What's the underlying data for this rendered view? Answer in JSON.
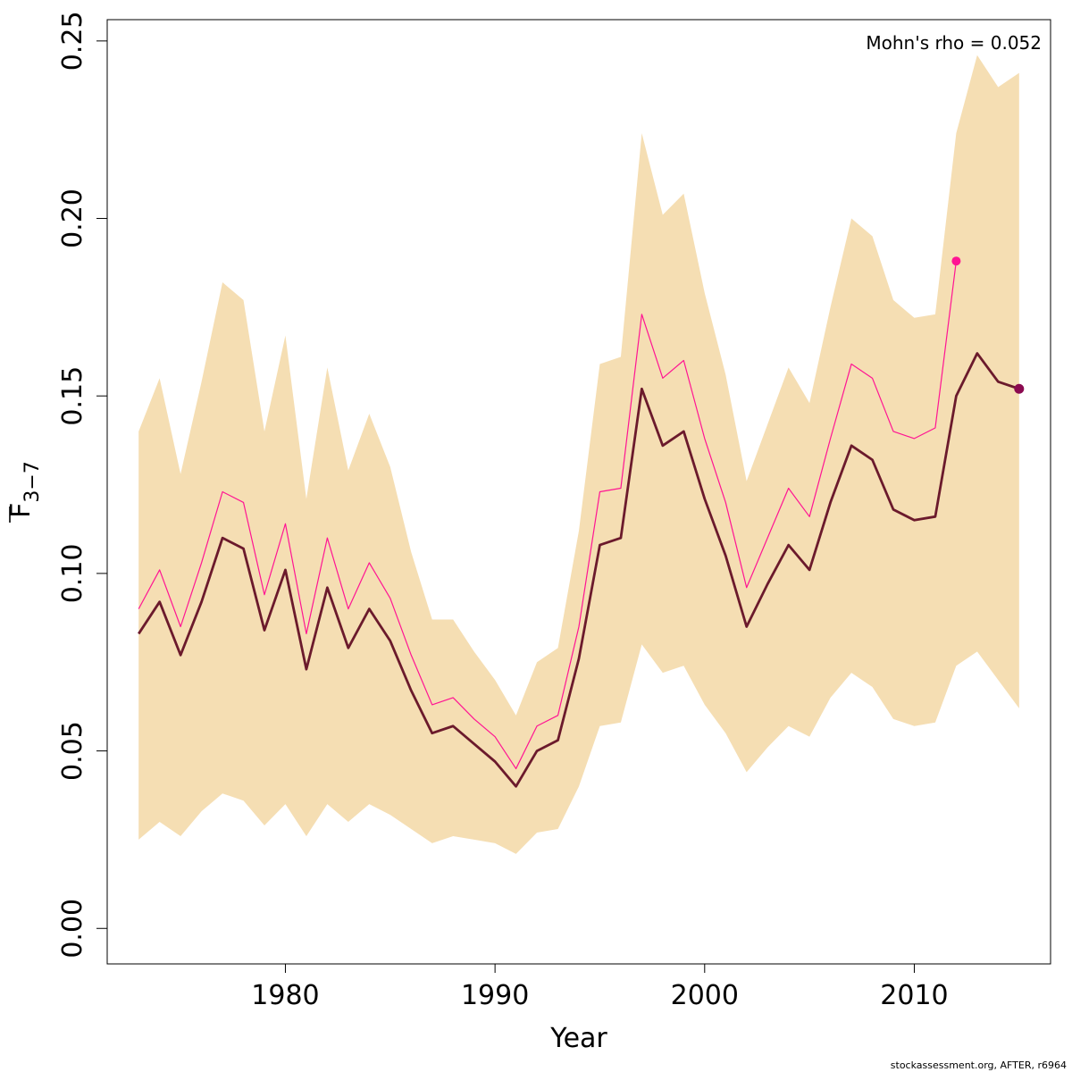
{
  "chart_data": {
    "type": "line",
    "xlabel": "Year",
    "ylabel_main": "F",
    "ylabel_sub": "3−7",
    "xlim": [
      1971.5,
      2016.5
    ],
    "ylim": [
      -0.01,
      0.256
    ],
    "x_ticks": [
      1980,
      1990,
      2000,
      2010
    ],
    "y_ticks": [
      "0.00",
      "0.05",
      "0.10",
      "0.15",
      "0.20",
      "0.25"
    ],
    "annotation": "Mohn's rho = 0.052",
    "footer": "stockassessment.org, AFTER, r6964",
    "colors": {
      "band": "#F5DEB3",
      "main_line": "#6B1A2C",
      "main_point": "#8B0A50",
      "retro_line": "#FF1493",
      "retro_point": "#FF1493"
    },
    "confidence_band": {
      "x": [
        1973,
        1974,
        1975,
        1976,
        1977,
        1978,
        1979,
        1980,
        1981,
        1982,
        1983,
        1984,
        1985,
        1986,
        1987,
        1988,
        1989,
        1990,
        1991,
        1992,
        1993,
        1994,
        1995,
        1996,
        1997,
        1998,
        1999,
        2000,
        2001,
        2002,
        2003,
        2004,
        2005,
        2006,
        2007,
        2008,
        2009,
        2010,
        2011,
        2012,
        2013,
        2014,
        2015
      ],
      "upper": [
        0.14,
        0.155,
        0.128,
        0.154,
        0.182,
        0.177,
        0.14,
        0.167,
        0.121,
        0.158,
        0.129,
        0.145,
        0.13,
        0.106,
        0.087,
        0.087,
        0.078,
        0.07,
        0.06,
        0.075,
        0.079,
        0.112,
        0.159,
        0.161,
        0.224,
        0.201,
        0.207,
        0.179,
        0.156,
        0.126,
        0.142,
        0.158,
        0.148,
        0.175,
        0.2,
        0.195,
        0.177,
        0.172,
        0.173,
        0.224,
        0.246,
        0.237,
        0.241
      ],
      "lower": [
        0.025,
        0.03,
        0.026,
        0.033,
        0.038,
        0.036,
        0.029,
        0.035,
        0.026,
        0.035,
        0.03,
        0.035,
        0.032,
        0.028,
        0.024,
        0.026,
        0.025,
        0.024,
        0.021,
        0.027,
        0.028,
        0.04,
        0.057,
        0.058,
        0.08,
        0.072,
        0.074,
        0.063,
        0.055,
        0.044,
        0.051,
        0.057,
        0.054,
        0.065,
        0.072,
        0.068,
        0.059,
        0.057,
        0.058,
        0.074,
        0.078,
        0.07,
        0.062
      ]
    },
    "series": [
      {
        "x": [
          1973,
          1974,
          1975,
          1976,
          1977,
          1978,
          1979,
          1980,
          1981,
          1982,
          1983,
          1984,
          1985,
          1986,
          1987,
          1988,
          1989,
          1990,
          1991,
          1992,
          1993,
          1994,
          1995,
          1996,
          1997,
          1998,
          1999,
          2000,
          2001,
          2002,
          2003,
          2004,
          2005,
          2006,
          2007,
          2008,
          2009,
          2010,
          2011,
          2012,
          2013,
          2014,
          2015
        ],
        "values": [
          0.083,
          0.092,
          0.077,
          0.092,
          0.11,
          0.107,
          0.084,
          0.101,
          0.073,
          0.096,
          0.079,
          0.09,
          0.081,
          0.067,
          0.055,
          0.057,
          0.052,
          0.047,
          0.04,
          0.05,
          0.053,
          0.076,
          0.108,
          0.11,
          0.152,
          0.136,
          0.14,
          0.121,
          0.105,
          0.085,
          0.097,
          0.108,
          0.101,
          0.12,
          0.136,
          0.132,
          0.118,
          0.115,
          0.116,
          0.15,
          0.162,
          0.154,
          0.152
        ],
        "end_point": [
          2015,
          0.152
        ]
      },
      {
        "x": [
          1973,
          1974,
          1975,
          1976,
          1977,
          1978,
          1979,
          1980,
          1981,
          1982,
          1983,
          1984,
          1985,
          1986,
          1987,
          1988,
          1989,
          1990,
          1991,
          1992,
          1993,
          1994,
          1995,
          1996,
          1997,
          1998,
          1999,
          2000,
          2001,
          2002,
          2003,
          2004,
          2005,
          2006,
          2007,
          2008,
          2009,
          2010,
          2011,
          2012
        ],
        "values": [
          0.09,
          0.101,
          0.085,
          0.103,
          0.123,
          0.12,
          0.094,
          0.114,
          0.083,
          0.11,
          0.09,
          0.103,
          0.093,
          0.077,
          0.063,
          0.065,
          0.059,
          0.054,
          0.045,
          0.057,
          0.06,
          0.085,
          0.123,
          0.124,
          0.173,
          0.155,
          0.16,
          0.138,
          0.12,
          0.096,
          0.11,
          0.124,
          0.116,
          0.138,
          0.159,
          0.155,
          0.14,
          0.138,
          0.141,
          0.188
        ],
        "end_point": [
          2012,
          0.188
        ]
      }
    ]
  }
}
